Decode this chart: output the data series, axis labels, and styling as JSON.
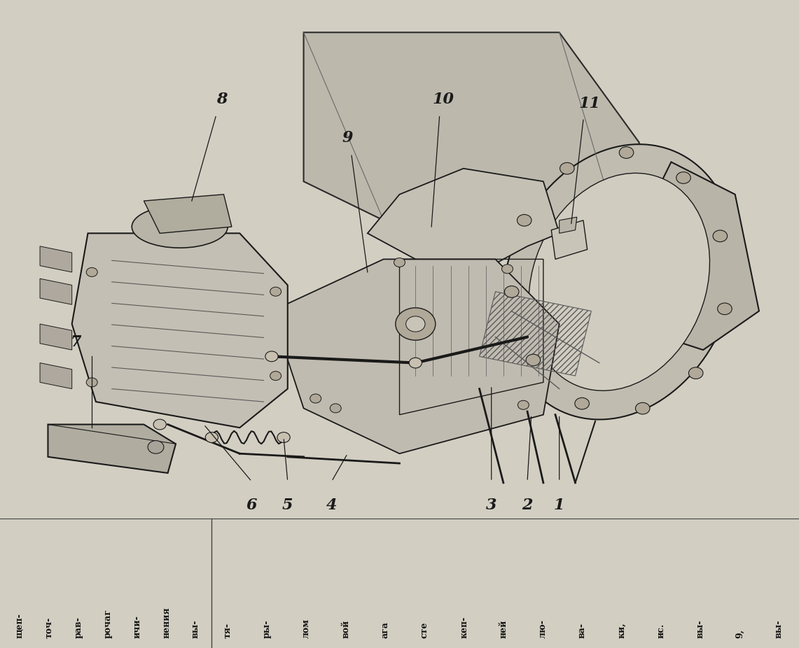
{
  "bg_color": "#d2cec2",
  "figure_bg": "#d2cec2",
  "label_fontsize": 16,
  "text_color": "#1a1a1a",
  "col1_texts": [
    "щеп-",
    "точ-",
    "рав-",
    "рочаг",
    "ичи-",
    "нения",
    "вы-"
  ],
  "col2_texts": [
    "тя-",
    "ры-",
    "лом",
    "вой",
    "ага",
    "сте",
    "кеп-",
    "ней",
    "лю-",
    "ва-",
    "ки,",
    "ис.",
    "вы-",
    "9,",
    "вы-"
  ]
}
